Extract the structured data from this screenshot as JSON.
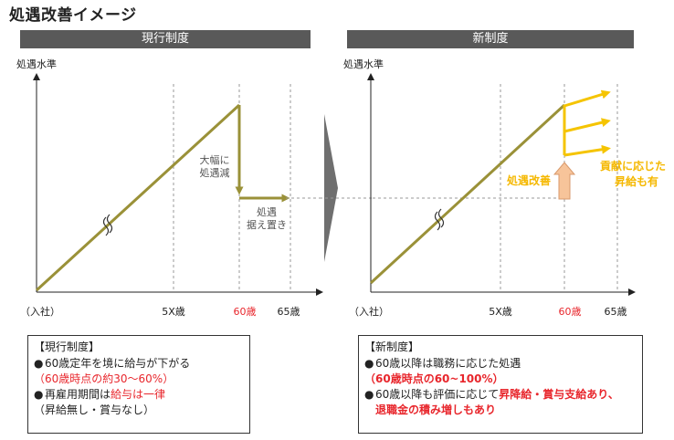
{
  "title": "処遇改善イメージ",
  "left": {
    "header": "現行制度",
    "y_label": "処遇水準",
    "tick_join": "（入社）",
    "tick_5x": "5X歳",
    "tick_60": "60歳",
    "tick_65": "65歳",
    "annot_cut_line1": "大幅に",
    "annot_cut_line2": "処遇減",
    "annot_hold_line1": "処遇",
    "annot_hold_line2": "据え置き",
    "box": {
      "heading": "【現行制度】",
      "bullet1": "60歳定年を境に給与が下がる",
      "bullet1_sub": "（60歳時点の約30～60%）",
      "bullet2_prefix": "再雇用期間は",
      "bullet2_emph": "給与は一律",
      "bullet2_sub": "（昇給無し・賞与なし）"
    }
  },
  "right": {
    "header": "新制度",
    "y_label": "処遇水準",
    "tick_join": "（入社）",
    "tick_5x": "5X歳",
    "tick_60": "60歳",
    "tick_65": "65歳",
    "annot_improve": "処遇改善",
    "annot_merit_line1": "貢献に応じた",
    "annot_merit_line2": "昇給も有",
    "box": {
      "heading": "【新制度】",
      "bullet1": "60歳以降は職務に応じた処遇",
      "bullet1_sub": "（60歳時点の60~100%）",
      "bullet2_prefix": "60歳以降も評価に応じて",
      "bullet2_emph": "昇降給・賞与支給あり、",
      "bullet2_emph2": "退職金の積み増しもあり"
    }
  },
  "bullet_char": "●",
  "colors": {
    "header_bg": "#595959",
    "olive": "#9a9138",
    "gold": "#f5c400",
    "red": "#e8262c",
    "orange_arrow": "#f7c49a"
  }
}
